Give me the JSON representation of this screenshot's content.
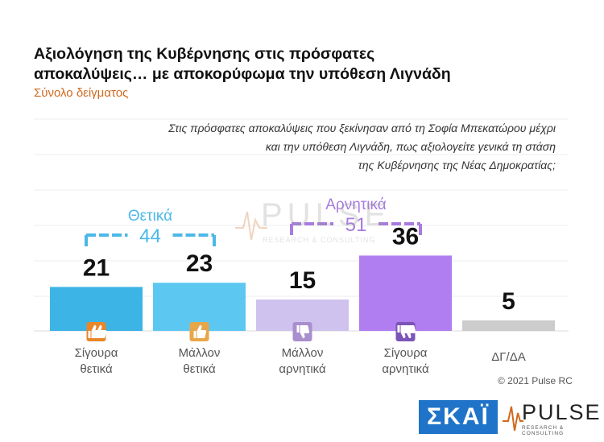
{
  "title_line1": "Αξιολόγηση της Κυβέρνησης στις πρόσφατες",
  "title_line2": "αποκαλύψεις… με αποκορύφωμα την υπόθεση Λιγνάδη",
  "subtitle": "Σύνολο δείγματος",
  "question_line1": "Στις πρόσφατες αποκαλύψεις που ξεκίνησαν από τη Σοφία Μπεκατώρου μέχρι",
  "question_line2": "και την υπόθεση Λιγνάδη, πως αξιολογείτε γενικά τη στάση",
  "question_line3": "της Κυβέρνησης της Νέας Δημοκρατίας;",
  "groups": {
    "positive": {
      "label": "Θετικά",
      "total": "44",
      "color": "#4cb8e8"
    },
    "negative": {
      "label": "Αρνητικά",
      "total": "51",
      "color": "#a87be0"
    }
  },
  "copyright": "© 2021 Pulse RC",
  "logos": {
    "skai": "ΣΚΑΪ",
    "pulse": "PULSE",
    "pulse_sub": "RESEARCH & CONSULTING"
  },
  "chart_data": {
    "type": "bar",
    "categories": [
      [
        "Σίγουρα",
        "θετικά"
      ],
      [
        "Μάλλον",
        "θετικά"
      ],
      [
        "Μάλλον",
        "αρνητικά"
      ],
      [
        "Σίγουρα",
        "αρνητικά"
      ],
      [
        "ΔΓ/ΔΑ"
      ]
    ],
    "values": [
      21,
      23,
      15,
      36,
      5
    ],
    "value_labels": [
      "21",
      "23",
      "15",
      "36",
      "5"
    ],
    "colors": [
      "#3cb4e6",
      "#5cc8f2",
      "#d0c2ee",
      "#b07ef0",
      "#cccccc"
    ],
    "icons": [
      "double-thumbs-up-icon",
      "thumbs-up-icon",
      "thumbs-down-icon",
      "double-thumbs-down-icon",
      ""
    ],
    "icon_colors": [
      "#e8872a",
      "#e8a64a",
      "#a88fce",
      "#7b55b8",
      ""
    ],
    "ylim": [
      0,
      60
    ],
    "grid": true
  }
}
